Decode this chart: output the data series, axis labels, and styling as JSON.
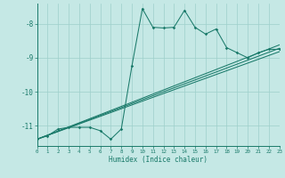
{
  "xlabel": "Humidex (Indice chaleur)",
  "background_color": "#c5e8e5",
  "grid_color": "#9ecfcb",
  "line_color": "#1a7a6a",
  "xlim": [
    0,
    23
  ],
  "ylim": [
    -11.6,
    -7.4
  ],
  "yticks": [
    -11,
    -10,
    -9,
    -8
  ],
  "xticks": [
    0,
    1,
    2,
    3,
    4,
    5,
    6,
    7,
    8,
    9,
    10,
    11,
    12,
    13,
    14,
    15,
    16,
    17,
    18,
    19,
    20,
    21,
    22,
    23
  ],
  "jagged_x": [
    0,
    1,
    2,
    3,
    4,
    5,
    6,
    7,
    8,
    9,
    10,
    11,
    12,
    13,
    14,
    15,
    16,
    17,
    18,
    19,
    20,
    21,
    22,
    23
  ],
  "jagged_y": [
    -11.4,
    -11.3,
    -11.1,
    -11.05,
    -11.05,
    -11.05,
    -11.15,
    -11.4,
    -11.1,
    -9.25,
    -7.55,
    -8.1,
    -8.12,
    -8.1,
    -7.6,
    -8.1,
    -8.3,
    -8.15,
    -8.7,
    -8.85,
    -9.0,
    -8.85,
    -8.75,
    -8.75
  ],
  "trend_lines": [
    {
      "x": [
        0,
        23
      ],
      "y": [
        -11.4,
        -8.62
      ]
    },
    {
      "x": [
        0,
        23
      ],
      "y": [
        -11.4,
        -8.72
      ]
    },
    {
      "x": [
        0,
        23
      ],
      "y": [
        -11.4,
        -8.82
      ]
    }
  ]
}
